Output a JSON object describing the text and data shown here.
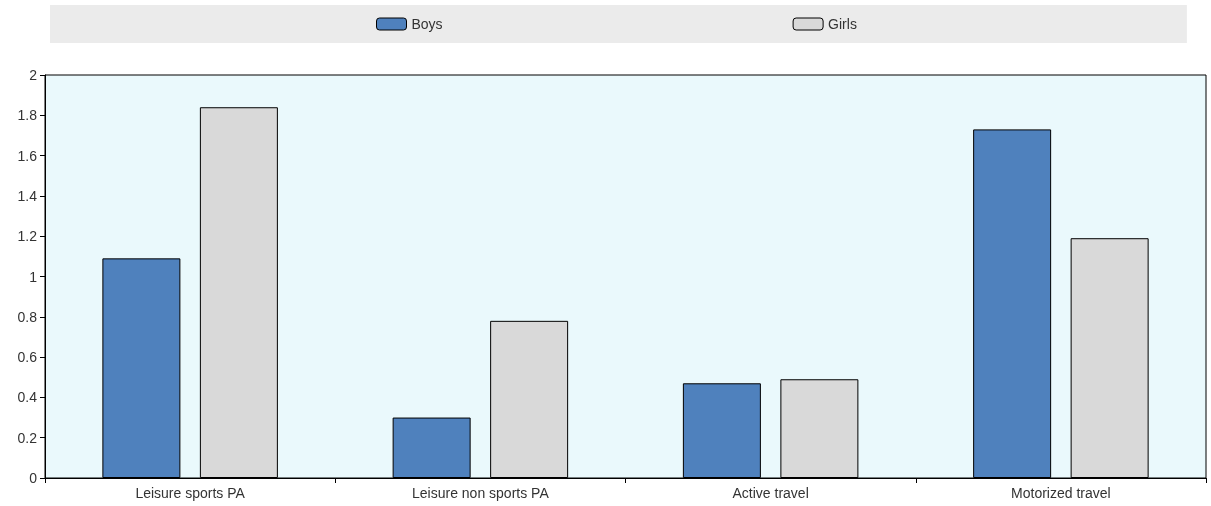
{
  "chart_data": {
    "type": "bar",
    "categories": [
      "Leisure sports PA",
      "Leisure non sports PA",
      "Active travel",
      "Motorized travel"
    ],
    "series": [
      {
        "name": "Boys",
        "color": "#4f81bd",
        "values": [
          1.09,
          0.3,
          0.47,
          1.73
        ]
      },
      {
        "name": "Girls",
        "color": "#d9d9d9",
        "values": [
          1.84,
          0.78,
          0.49,
          1.19
        ]
      }
    ],
    "ylim": [
      0,
      2
    ],
    "yticks": [
      0,
      0.2,
      0.4,
      0.6,
      0.8,
      1,
      1.2,
      1.4,
      1.6,
      1.8,
      2
    ],
    "grid": false,
    "legend": "top"
  }
}
